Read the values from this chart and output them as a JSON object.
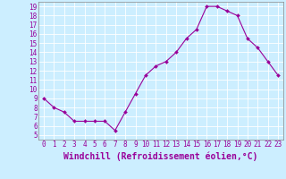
{
  "x": [
    0,
    1,
    2,
    3,
    4,
    5,
    6,
    7,
    8,
    9,
    10,
    11,
    12,
    13,
    14,
    15,
    16,
    17,
    18,
    19,
    20,
    21,
    22,
    23
  ],
  "y": [
    9,
    8,
    7.5,
    6.5,
    6.5,
    6.5,
    6.5,
    5.5,
    7.5,
    9.5,
    11.5,
    12.5,
    13,
    14,
    15.5,
    16.5,
    19,
    19,
    18.5,
    18,
    15.5,
    14.5,
    13,
    11.5
  ],
  "line_color": "#990099",
  "marker": "D",
  "marker_size": 2.0,
  "bg_color": "#cceeff",
  "grid_color": "#ffffff",
  "xlabel": "Windchill (Refroidissement éolien,°C)",
  "ylim": [
    4.5,
    19.5
  ],
  "xlim": [
    -0.5,
    23.5
  ],
  "yticks": [
    5,
    6,
    7,
    8,
    9,
    10,
    11,
    12,
    13,
    14,
    15,
    16,
    17,
    18,
    19
  ],
  "xticks": [
    0,
    1,
    2,
    3,
    4,
    5,
    6,
    7,
    8,
    9,
    10,
    11,
    12,
    13,
    14,
    15,
    16,
    17,
    18,
    19,
    20,
    21,
    22,
    23
  ],
  "tick_label_fontsize": 5.5,
  "xlabel_fontsize": 7.0,
  "label_color": "#990099"
}
